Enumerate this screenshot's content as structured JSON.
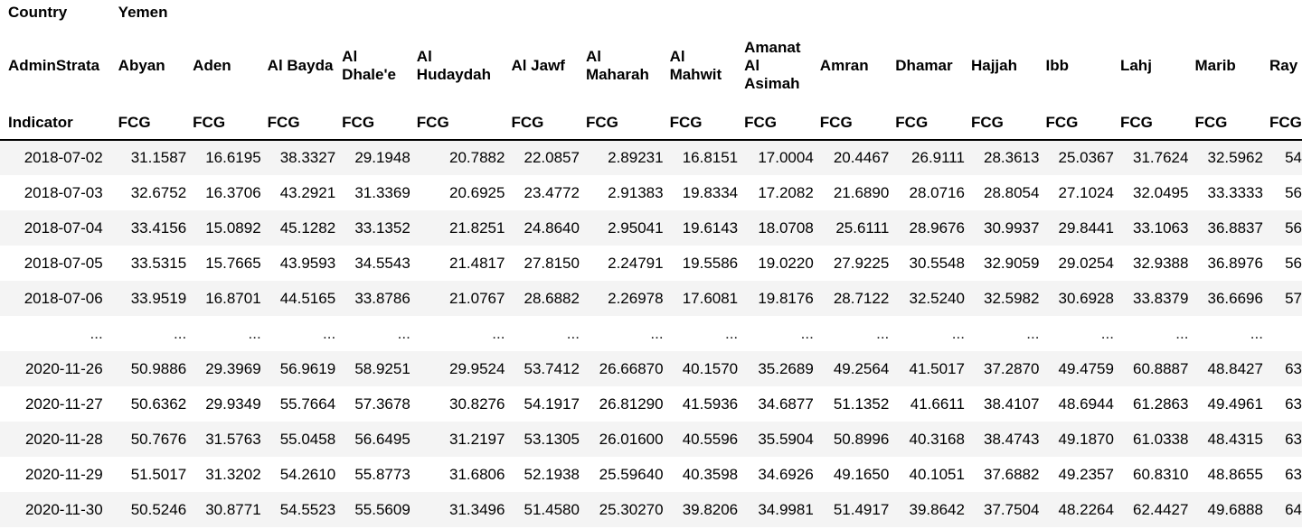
{
  "header": {
    "row1_label": "Country",
    "country": "Yemen",
    "row2_label": "AdminStrata",
    "row3_label": "Indicator",
    "indicator": "FCG",
    "columns": [
      "Abyan",
      "Aden",
      "Al Bayda",
      "Al Dhale'e",
      "Al Hudaydah",
      "Al Jawf",
      "Al Maharah",
      "Al Mahwit",
      "Amanat Al Asimah",
      "Amran",
      "Dhamar",
      "Hajjah",
      "Ibb",
      "Lahj",
      "Marib",
      "Ray"
    ]
  },
  "rows": [
    {
      "date": "2018-07-02",
      "values": [
        "31.1587",
        "16.6195",
        "38.3327",
        "29.1948",
        "20.7882",
        "22.0857",
        "2.89231",
        "16.8151",
        "17.0004",
        "20.4467",
        "26.9111",
        "28.3613",
        "25.0367",
        "31.7624",
        "32.5962",
        "54"
      ]
    },
    {
      "date": "2018-07-03",
      "values": [
        "32.6752",
        "16.3706",
        "43.2921",
        "31.3369",
        "20.6925",
        "23.4772",
        "2.91383",
        "19.8334",
        "17.2082",
        "21.6890",
        "28.0716",
        "28.8054",
        "27.1024",
        "32.0495",
        "33.3333",
        "56"
      ]
    },
    {
      "date": "2018-07-04",
      "values": [
        "33.4156",
        "15.0892",
        "45.1282",
        "33.1352",
        "21.8251",
        "24.8640",
        "2.95041",
        "19.6143",
        "18.0708",
        "25.6111",
        "28.9676",
        "30.9937",
        "29.8441",
        "33.1063",
        "36.8837",
        "56"
      ]
    },
    {
      "date": "2018-07-05",
      "values": [
        "33.5315",
        "15.7665",
        "43.9593",
        "34.5543",
        "21.4817",
        "27.8150",
        "2.24791",
        "19.5586",
        "19.0220",
        "27.9225",
        "30.5548",
        "32.9059",
        "29.0254",
        "32.9388",
        "36.8976",
        "56"
      ]
    },
    {
      "date": "2018-07-06",
      "values": [
        "33.9519",
        "16.8701",
        "44.5165",
        "33.8786",
        "21.0767",
        "28.6882",
        "2.26978",
        "17.6081",
        "19.8176",
        "28.7122",
        "32.5240",
        "32.5982",
        "30.6928",
        "33.8379",
        "36.6696",
        "57"
      ]
    },
    {
      "date": "...",
      "values": [
        "...",
        "...",
        "...",
        "...",
        "...",
        "...",
        "...",
        "...",
        "...",
        "...",
        "...",
        "...",
        "...",
        "...",
        "...",
        ""
      ]
    },
    {
      "date": "2020-11-26",
      "values": [
        "50.9886",
        "29.3969",
        "56.9619",
        "58.9251",
        "29.9524",
        "53.7412",
        "26.66870",
        "40.1570",
        "35.2689",
        "49.2564",
        "41.5017",
        "37.2870",
        "49.4759",
        "60.8887",
        "48.8427",
        "63"
      ]
    },
    {
      "date": "2020-11-27",
      "values": [
        "50.6362",
        "29.9349",
        "55.7664",
        "57.3678",
        "30.8276",
        "54.1917",
        "26.81290",
        "41.5936",
        "34.6877",
        "51.1352",
        "41.6611",
        "38.4107",
        "48.6944",
        "61.2863",
        "49.4961",
        "63"
      ]
    },
    {
      "date": "2020-11-28",
      "values": [
        "50.7676",
        "31.5763",
        "55.0458",
        "56.6495",
        "31.2197",
        "53.1305",
        "26.01600",
        "40.5596",
        "35.5904",
        "50.8996",
        "40.3168",
        "38.4743",
        "49.1870",
        "61.0338",
        "48.4315",
        "63"
      ]
    },
    {
      "date": "2020-11-29",
      "values": [
        "51.5017",
        "31.3202",
        "54.2610",
        "55.8773",
        "31.6806",
        "52.1938",
        "25.59640",
        "40.3598",
        "34.6926",
        "49.1650",
        "40.1051",
        "37.6882",
        "49.2357",
        "60.8310",
        "48.8655",
        "63"
      ]
    },
    {
      "date": "2020-11-30",
      "values": [
        "50.5246",
        "30.8771",
        "54.5523",
        "55.5609",
        "31.3496",
        "51.4580",
        "25.30270",
        "39.8206",
        "34.9981",
        "51.4917",
        "39.8642",
        "37.7504",
        "48.2264",
        "62.4427",
        "49.6888",
        "64"
      ]
    }
  ]
}
